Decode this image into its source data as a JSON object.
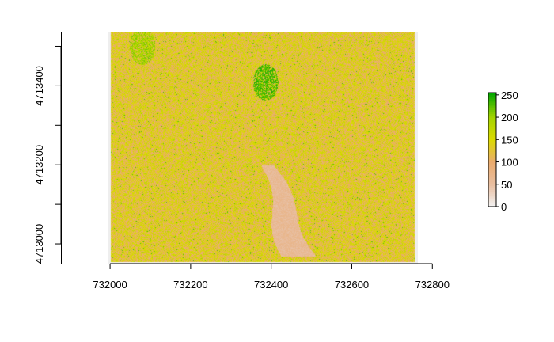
{
  "chart_data": {
    "type": "heatmap",
    "title": "",
    "xlabel": "",
    "ylabel": "",
    "xlim": [
      731880,
      732880
    ],
    "ylim": [
      4712950,
      4713535
    ],
    "x_ticks": [
      732000,
      732200,
      732400,
      732600,
      732800
    ],
    "x_tick_labels": [
      "732000",
      "732200",
      "732400",
      "732600",
      "732800"
    ],
    "y_ticks": [
      4713000,
      4713200,
      4713400
    ],
    "y_tick_labels": [
      "4713000",
      "4713200",
      "4713400"
    ],
    "raster_extent": {
      "xmin": 731995,
      "xmax": 732765,
      "ymin": 4712950,
      "ymax": 4713535
    },
    "data_extent": {
      "xmin": 732000,
      "xmax": 732755,
      "ymin": 4712955,
      "ymax": 4713535
    },
    "features": [
      {
        "kind": "open-channel",
        "description": "low-value sandy strip running north to south",
        "x_start": 732390,
        "x_end": 732470,
        "y_start": 4713200,
        "y_end": 4712970,
        "value": 60
      },
      {
        "kind": "dense-patch",
        "x_center": 732385,
        "y_center": 4713410,
        "value": 230
      },
      {
        "kind": "dense-patch",
        "x_center": 732080,
        "y_center": 4713500,
        "value": 200
      }
    ],
    "value_mean": 130,
    "value_range": [
      0,
      255
    ],
    "legend": {
      "position": "right",
      "ticks": [
        0,
        50,
        100,
        150,
        200,
        250
      ],
      "tick_labels": [
        "0",
        "50",
        "100",
        "150",
        "200",
        "250"
      ],
      "range": [
        0,
        255
      ],
      "colors": [
        "#f2f2f2",
        "#e8c0a0",
        "#e9a86b",
        "#d9d900",
        "#a8d400",
        "#00a600"
      ]
    }
  }
}
